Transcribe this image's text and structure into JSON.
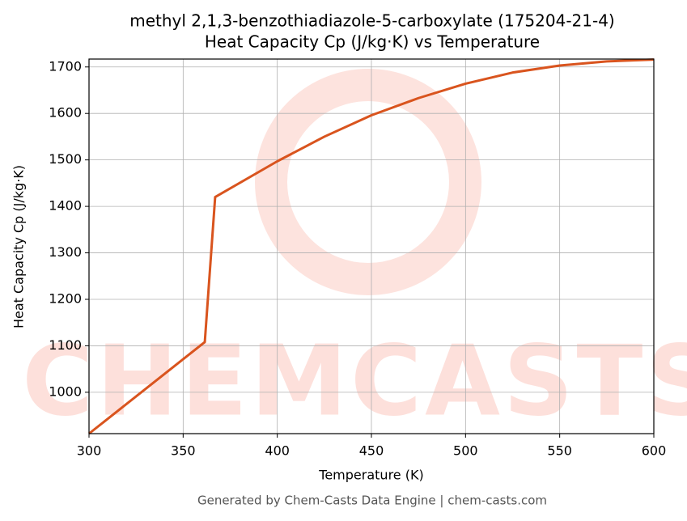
{
  "chart_data": {
    "type": "line",
    "title": "methyl 2,1,3-benzothiadiazole-5-carboxylate (175204-21-4)",
    "subtitle": "Heat Capacity Cp (J/kg·K) vs Temperature",
    "x_label": "Temperature (K)",
    "y_label": "Heat Capacity Cp (J/kg·K)",
    "watermark": "CHEMCASTS",
    "footer": "Generated by Chem-Casts Data Engine | chem-casts.com",
    "x": [
      300,
      361.5,
      367,
      400,
      425,
      450,
      475,
      500,
      525,
      550,
      575,
      600
    ],
    "series": [
      {
        "name": "Cp",
        "color": "#d9541e",
        "values": [
          911,
          1108,
          1420,
          1497,
          1550,
          1596,
          1633,
          1664,
          1688,
          1703,
          1712,
          1716
        ]
      }
    ],
    "xlim": [
      300,
      600
    ],
    "xticks": [
      300,
      350,
      400,
      450,
      500,
      550,
      600
    ],
    "ylim": [
      911,
      1717
    ],
    "yticks": [
      1000,
      1100,
      1200,
      1300,
      1400,
      1500,
      1600,
      1700
    ],
    "grid": true
  }
}
